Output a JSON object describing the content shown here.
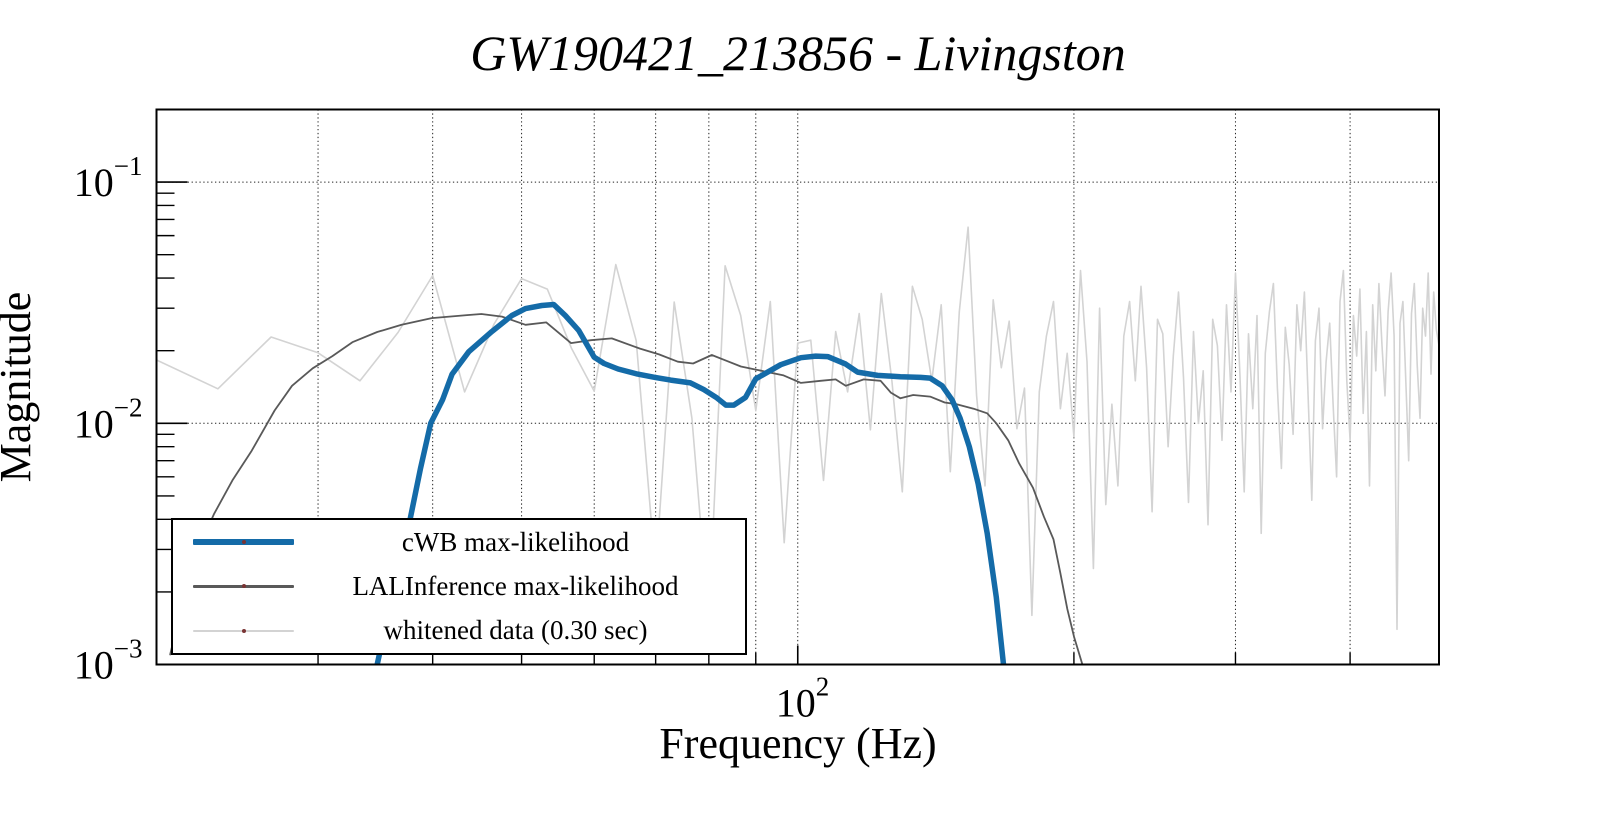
{
  "page": {
    "background": "#ffffff"
  },
  "chart_data": {
    "type": "line",
    "title": "GW190421_213856 - Livingston",
    "xlabel": "Frequency (Hz)",
    "ylabel": "Magnitude",
    "x_scale": "log",
    "y_scale": "log",
    "xlim": [
      20,
      500
    ],
    "ylim": [
      0.001,
      0.2
    ],
    "grid": {
      "style": "dotted",
      "color": "#222222",
      "x_lines": [
        30,
        40,
        50,
        60,
        70,
        80,
        90,
        100,
        200,
        300,
        400
      ],
      "y_lines": [
        0.1,
        0.01
      ]
    },
    "x_major_ticks": [
      100
    ],
    "x_major_tick_labels": [
      {
        "base": "10",
        "exp": "2"
      }
    ],
    "x_minor_ticks": [
      30,
      40,
      50,
      60,
      70,
      80,
      90,
      200,
      300,
      400
    ],
    "y_major_ticks": [
      0.1,
      0.01,
      0.001
    ],
    "y_major_tick_labels": [
      {
        "base": "10",
        "exp": "−1"
      },
      {
        "base": "10",
        "exp": "−2"
      },
      {
        "base": "10",
        "exp": "−3"
      }
    ],
    "y_minor_ticks": [
      0.09,
      0.08,
      0.07,
      0.06,
      0.05,
      0.04,
      0.03,
      0.02,
      0.009,
      0.008,
      0.007,
      0.006,
      0.005,
      0.004,
      0.003,
      0.002
    ],
    "legend": {
      "position": "lower left",
      "marker_color": "#7a3434",
      "border_color": "#000000",
      "background": "#ffffff"
    },
    "series": [
      {
        "name": "cwb",
        "label": "cWB max-likelihood",
        "color": "#146ba8",
        "width": 5.5,
        "points": [
          [
            34.8,
            0.001
          ],
          [
            36.4,
            0.0022
          ],
          [
            37.8,
            0.004
          ],
          [
            38.8,
            0.0065
          ],
          [
            39.8,
            0.01
          ],
          [
            41.0,
            0.0125
          ],
          [
            42.0,
            0.016
          ],
          [
            43.8,
            0.0198
          ],
          [
            46.4,
            0.024
          ],
          [
            48.8,
            0.028
          ],
          [
            50.5,
            0.0299
          ],
          [
            52.6,
            0.0308
          ],
          [
            54.2,
            0.0311
          ],
          [
            55.8,
            0.028
          ],
          [
            57.7,
            0.0243
          ],
          [
            60.0,
            0.0188
          ],
          [
            61.5,
            0.0177
          ],
          [
            63.7,
            0.0168
          ],
          [
            66.9,
            0.016
          ],
          [
            69.9,
            0.0155
          ],
          [
            72.7,
            0.0151
          ],
          [
            76.4,
            0.0147
          ],
          [
            79.0,
            0.0138
          ],
          [
            81.5,
            0.0128
          ],
          [
            83.5,
            0.0119
          ],
          [
            85.2,
            0.0119
          ],
          [
            87.7,
            0.0128
          ],
          [
            90.0,
            0.0153
          ],
          [
            95.8,
            0.0175
          ],
          [
            100.8,
            0.0187
          ],
          [
            104.6,
            0.019
          ],
          [
            107.8,
            0.0189
          ],
          [
            112.8,
            0.0176
          ],
          [
            116.2,
            0.0163
          ],
          [
            122.2,
            0.0158
          ],
          [
            129.4,
            0.0156
          ],
          [
            136.1,
            0.0155
          ],
          [
            139.4,
            0.0154
          ],
          [
            143.7,
            0.0143
          ],
          [
            147.3,
            0.0125
          ],
          [
            150.3,
            0.0105
          ],
          [
            153.8,
            0.008
          ],
          [
            157.3,
            0.0056
          ],
          [
            160.9,
            0.0035
          ],
          [
            164.6,
            0.0019
          ],
          [
            167.6,
            0.001
          ]
        ]
      },
      {
        "name": "lal",
        "label": "LALInference max-likelihood",
        "color": "#595959",
        "width": 1.8,
        "points": [
          [
            20.7,
            0.0011
          ],
          [
            21.4,
            0.0019
          ],
          [
            22.2,
            0.003
          ],
          [
            23.1,
            0.0042
          ],
          [
            24.2,
            0.0058
          ],
          [
            25.4,
            0.0077
          ],
          [
            26.9,
            0.0113
          ],
          [
            28.1,
            0.0143
          ],
          [
            29.6,
            0.0169
          ],
          [
            31.1,
            0.019
          ],
          [
            32.7,
            0.0217
          ],
          [
            34.8,
            0.0239
          ],
          [
            37.0,
            0.0256
          ],
          [
            39.9,
            0.0273
          ],
          [
            43.6,
            0.0281
          ],
          [
            45.2,
            0.0284
          ],
          [
            47.6,
            0.0277
          ],
          [
            50.5,
            0.0256
          ],
          [
            53.2,
            0.0262
          ],
          [
            56.6,
            0.0215
          ],
          [
            59.5,
            0.0221
          ],
          [
            62.7,
            0.0225
          ],
          [
            67.3,
            0.0204
          ],
          [
            70.6,
            0.0193
          ],
          [
            74.0,
            0.018
          ],
          [
            76.9,
            0.0177
          ],
          [
            80.6,
            0.0192
          ],
          [
            83.5,
            0.0182
          ],
          [
            86.7,
            0.0172
          ],
          [
            90.0,
            0.0167
          ],
          [
            96.5,
            0.0158
          ],
          [
            100.8,
            0.0147
          ],
          [
            105.9,
            0.015
          ],
          [
            110.0,
            0.0152
          ],
          [
            112.8,
            0.0143
          ],
          [
            118.0,
            0.0152
          ],
          [
            123.1,
            0.015
          ],
          [
            126.3,
            0.0134
          ],
          [
            129.4,
            0.0127
          ],
          [
            133.6,
            0.0131
          ],
          [
            139.4,
            0.0129
          ],
          [
            144.6,
            0.0122
          ],
          [
            149.0,
            0.012
          ],
          [
            155.5,
            0.0115
          ],
          [
            160.9,
            0.011
          ],
          [
            164.6,
            0.01
          ],
          [
            169.6,
            0.0085
          ],
          [
            174.4,
            0.0068
          ],
          [
            180.5,
            0.0054
          ],
          [
            185.5,
            0.0041
          ],
          [
            190.0,
            0.0033
          ],
          [
            193.3,
            0.0024
          ],
          [
            196.7,
            0.0017
          ],
          [
            200.1,
            0.0013
          ],
          [
            204.3,
            0.001
          ]
        ]
      },
      {
        "name": "whitened",
        "label": "whitened data (0.30 sec)",
        "color": "#d3d3d3",
        "width": 1.6,
        "x_start": 20,
        "x_step": 3.33333,
        "values": [
          0.0183,
          0.0139,
          0.0228,
          0.0196,
          0.015,
          0.0238,
          0.041,
          0.0135,
          0.0258,
          0.0398,
          0.036,
          0.0205,
          0.0136,
          0.0455,
          0.022,
          0.0024,
          0.0318,
          0.0105,
          0.0015,
          0.045,
          0.028,
          0.0113,
          0.032,
          0.0032,
          0.0215,
          0.0221,
          0.0058,
          0.024,
          0.0135,
          0.0285,
          0.0094,
          0.0345,
          0.015,
          0.0052,
          0.037,
          0.027,
          0.015,
          0.031,
          0.0063,
          0.029,
          0.065,
          0.013,
          0.0055,
          0.0325,
          0.017,
          0.0265,
          0.0095,
          0.014,
          0.0016,
          0.0135,
          0.023,
          0.032,
          0.0115,
          0.0195,
          0.0088,
          0.043,
          0.018,
          0.0025,
          0.03,
          0.0046,
          0.012,
          0.0055,
          0.023,
          0.032,
          0.015,
          0.037,
          0.017,
          0.0043,
          0.027,
          0.0235,
          0.008,
          0.019,
          0.035,
          0.0155,
          0.0047,
          0.024,
          0.01,
          0.0165,
          0.0038,
          0.027,
          0.021,
          0.0085,
          0.031,
          0.0135,
          0.042,
          0.016,
          0.0052,
          0.0235,
          0.0115,
          0.028,
          0.0035,
          0.0195,
          0.029,
          0.038,
          0.014,
          0.0065,
          0.025,
          0.0175,
          0.009,
          0.031,
          0.02,
          0.035,
          0.013,
          0.0048,
          0.022,
          0.03,
          0.0095,
          0.018,
          0.026,
          0.012,
          0.006,
          0.032,
          0.043,
          0.015,
          0.0085,
          0.028,
          0.019,
          0.036,
          0.011,
          0.024,
          0.0055,
          0.031,
          0.0165,
          0.038,
          0.021,
          0.013,
          0.029,
          0.042,
          0.023,
          0.0014,
          0.026,
          0.032,
          0.015,
          0.007,
          0.0285,
          0.038,
          0.0175,
          0.0105,
          0.03,
          0.023,
          0.042,
          0.016,
          0.035,
          0.0245,
          0.021
        ]
      }
    ]
  }
}
